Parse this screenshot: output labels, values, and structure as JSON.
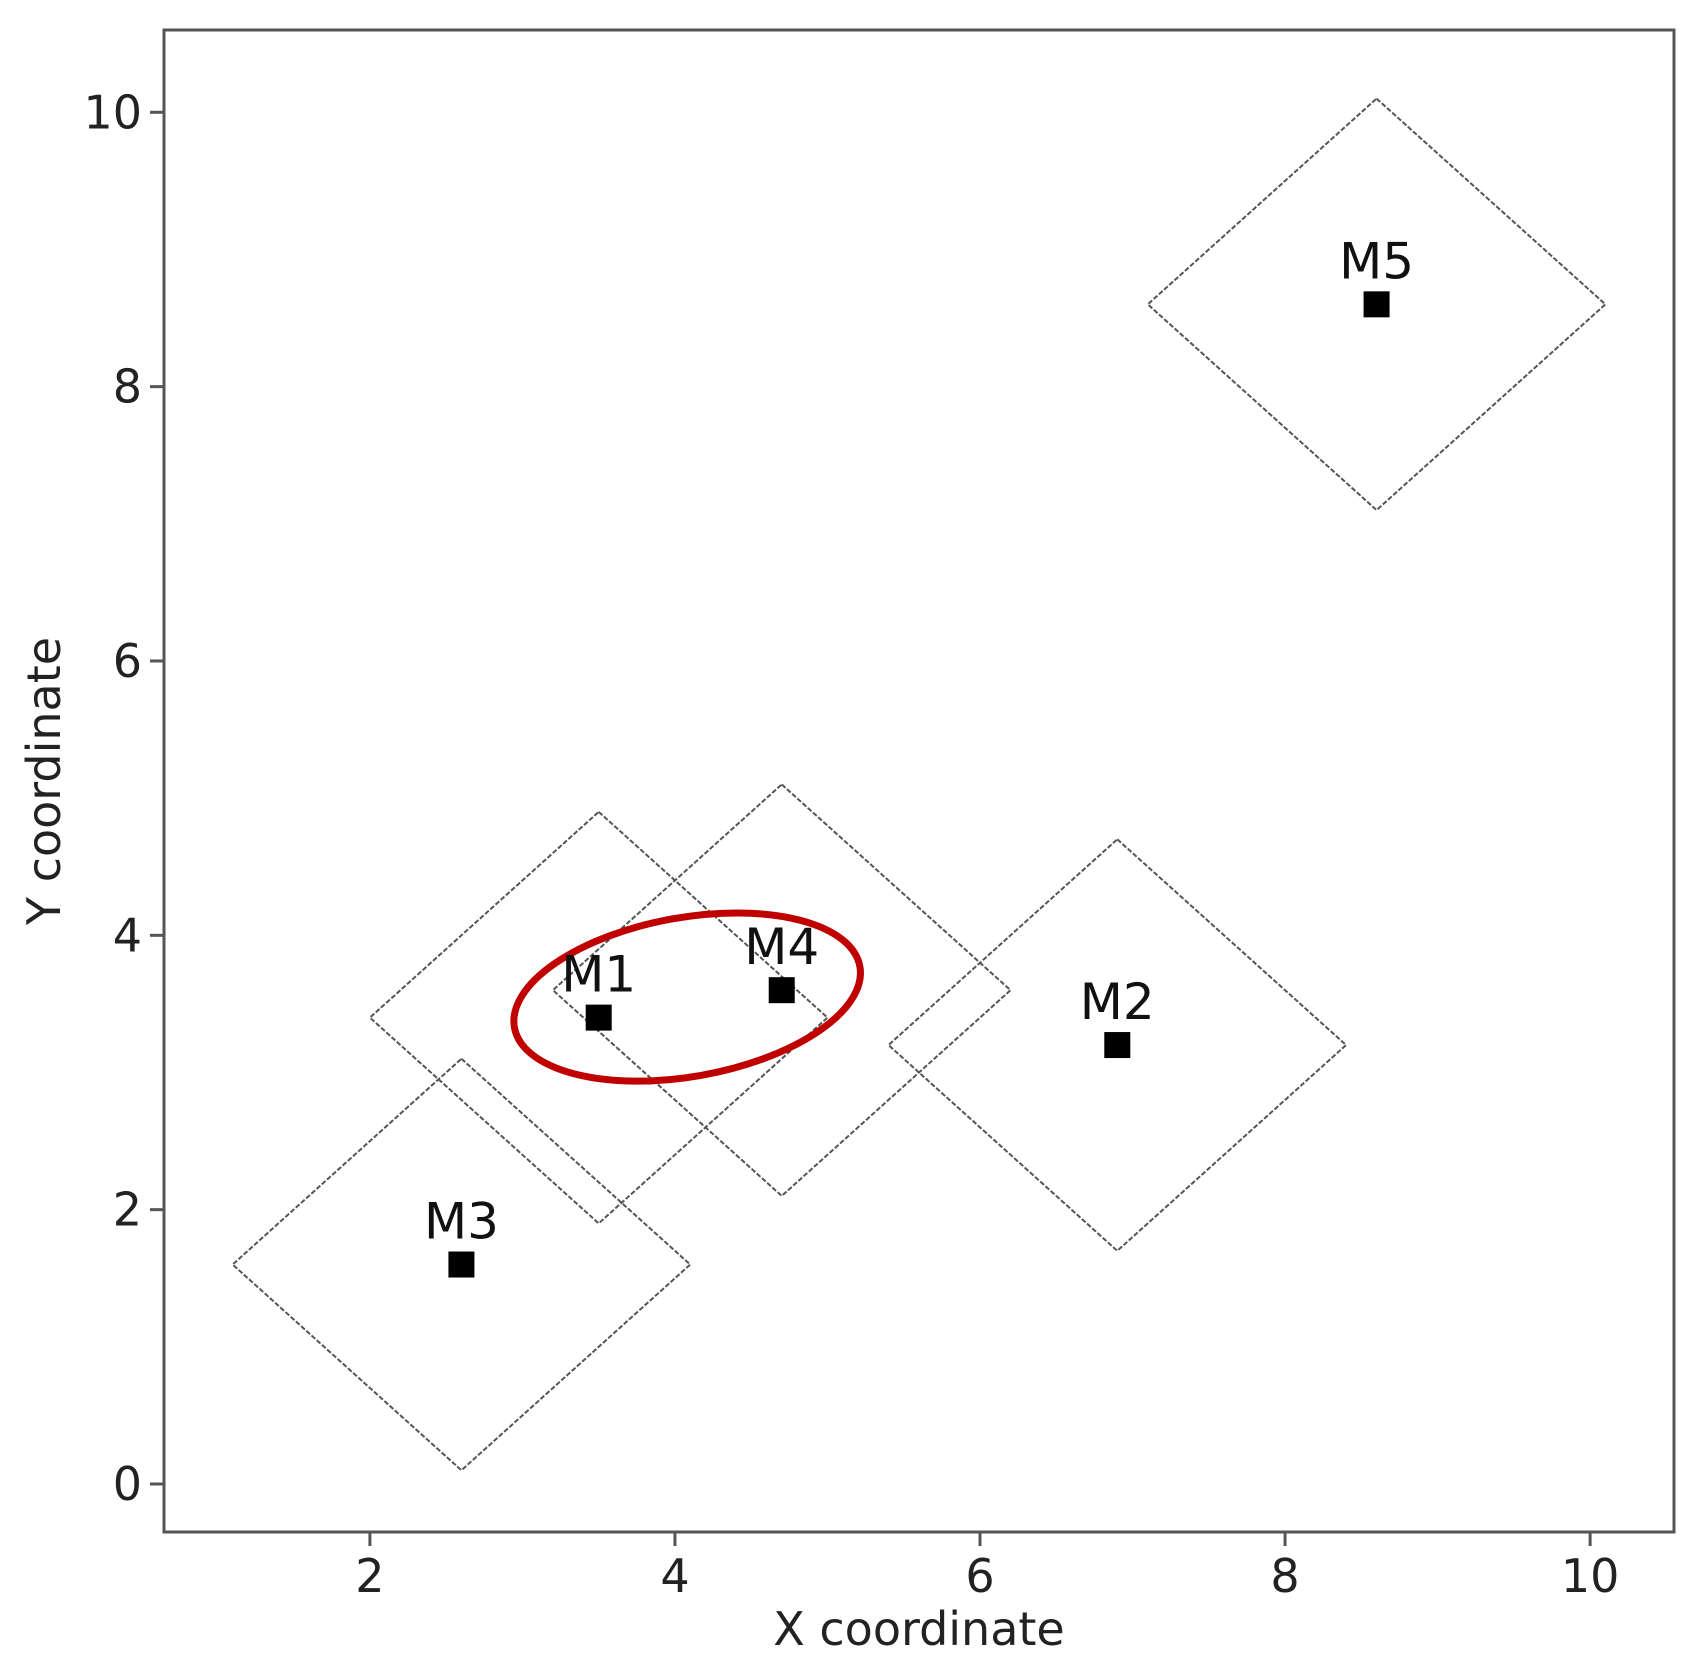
{
  "chart_data": {
    "type": "scatter",
    "title": "",
    "xlabel": "X coordinate",
    "ylabel": "Y coordinate",
    "xlim": [
      0.65,
      10.55
    ],
    "ylim": [
      -0.35,
      10.6
    ],
    "xticks": [
      2,
      4,
      6,
      8,
      10
    ],
    "yticks": [
      0,
      2,
      4,
      6,
      8,
      10
    ],
    "xtick_labels": [
      "2",
      "4",
      "6",
      "8",
      "10"
    ],
    "ytick_labels": [
      "0",
      "2",
      "4",
      "6",
      "8",
      "10"
    ],
    "grid": false,
    "marker": "square",
    "marker_color": "#000000",
    "points": [
      {
        "label": "M1",
        "x": 3.5,
        "y": 3.4,
        "diamond_half_x": 1.5,
        "diamond_half_y": 1.5
      },
      {
        "label": "M2",
        "x": 6.9,
        "y": 3.2,
        "diamond_half_x": 1.5,
        "diamond_half_y": 1.5
      },
      {
        "label": "M3",
        "x": 2.6,
        "y": 1.6,
        "diamond_half_x": 1.5,
        "diamond_half_y": 1.5
      },
      {
        "label": "M4",
        "x": 4.7,
        "y": 3.6,
        "diamond_half_x": 1.5,
        "diamond_half_y": 1.5
      },
      {
        "label": "M5",
        "x": 8.6,
        "y": 8.6,
        "diamond_half_x": 1.5,
        "diamond_half_y": 1.5
      }
    ],
    "diamond_color": "#555555",
    "highlight": {
      "encloses": [
        "M1",
        "M4"
      ],
      "shape": "ellipse",
      "color": "#c00000",
      "center_x": 4.08,
      "center_y": 3.55,
      "radius_x": 1.15,
      "radius_y": 0.58,
      "rotation_deg": -10
    }
  }
}
